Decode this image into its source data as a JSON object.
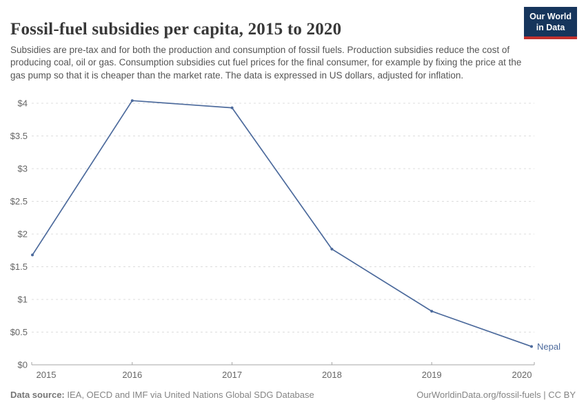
{
  "header": {
    "title": "Fossil-fuel subsidies per capita, 2015 to 2020",
    "subtitle": "Subsidies are pre-tax and for both the production and consumption of fossil fuels. Production subsidies reduce the cost of producing coal, oil or gas. Consumption subsidies cut fuel prices for the final consumer, for example by fixing the price at the gas pump so that it is cheaper than the market rate. The data is expressed in US dollars, adjusted for inflation.",
    "logo": {
      "line1": "Our World",
      "line2": "in Data",
      "bg_color": "#16355c",
      "stripe_color": "#c2302d"
    }
  },
  "chart_data": {
    "type": "line",
    "title": "Fossil-fuel subsidies per capita, 2015 to 2020",
    "x": [
      2015,
      2016,
      2017,
      2018,
      2019,
      2020
    ],
    "xtick_labels": [
      "2015",
      "2016",
      "2017",
      "2018",
      "2019",
      "2020"
    ],
    "series": [
      {
        "name": "Nepal",
        "values": [
          1.68,
          4.04,
          3.93,
          1.77,
          0.82,
          0.28
        ],
        "color": "#4C6A9C"
      }
    ],
    "end_label": "Nepal",
    "xlabel": "",
    "ylabel": "",
    "ylim": [
      0,
      4
    ],
    "ytick_step": 0.5,
    "ytick_labels": [
      "$0",
      "$0.5",
      "$1",
      "$1.5",
      "$2",
      "$2.5",
      "$3",
      "$3.5",
      "$4"
    ],
    "grid": "horizontal-dashed",
    "legend_position": "end-of-line",
    "unit": "US dollars per capita"
  },
  "colors": {
    "line": "#4C6A9C",
    "grid_line": "#dcdcdc",
    "axis_line": "#a5a5a5",
    "tick_label": "#666666",
    "title_text": "#383838",
    "subtitle_text": "#555555",
    "footer_text": "#848484"
  },
  "footer": {
    "source_label": "Data source:",
    "source_text": " IEA, OECD and IMF via United Nations Global SDG Database",
    "credit": "OurWorldinData.org/fossil-fuels | CC BY"
  }
}
